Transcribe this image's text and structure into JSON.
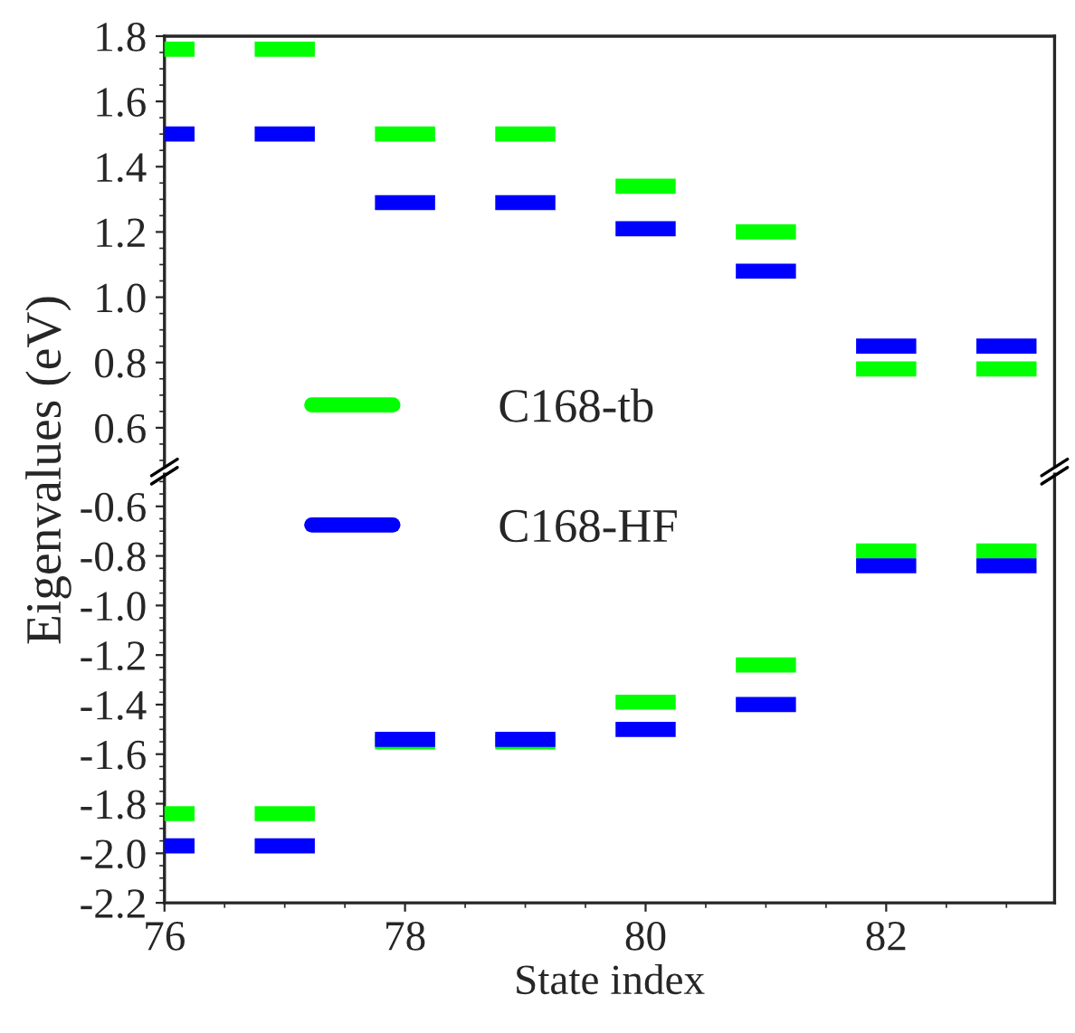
{
  "chart_data": [
    {
      "type": "line",
      "ylabel": "Eigenvalues (eV)",
      "x": [
        76,
        76.25,
        76.5,
        76.75,
        77.25,
        77.5,
        77.75,
        78.25,
        78.5,
        78.75,
        79.25,
        79.5,
        79.75,
        80.25,
        80.5,
        80.75,
        81.25,
        81.5,
        81.75,
        82.25,
        82.5,
        82.75,
        83.25
      ],
      "xlim": [
        76,
        83.4
      ],
      "xticks": [
        76,
        78,
        80,
        82
      ],
      "ylim": [
        0.48,
        1.8
      ],
      "yticks": [
        {
          "value": 0.6,
          "label": "0.6"
        },
        {
          "value": 0.8,
          "label": "0.8"
        },
        {
          "value": 1.0,
          "label": "1.0"
        },
        {
          "value": 1.2,
          "label": "1.2"
        },
        {
          "value": 1.4,
          "label": "1.4"
        },
        {
          "value": 1.6,
          "label": "1.6"
        },
        {
          "value": 1.8,
          "label": "1.8"
        }
      ],
      "tick_labels": "y",
      "legend": "left",
      "line_style": "solid",
      "series": [
        {
          "name": "C168-tb",
          "color": "#00ff00",
          "values": [
            1.76,
            1.76,
            null,
            1.76,
            1.76,
            null,
            1.5,
            1.5,
            null,
            1.5,
            1.5,
            null,
            1.34,
            1.34,
            null,
            1.2,
            1.2,
            null,
            0.78,
            0.78,
            null,
            0.78,
            0.78
          ]
        },
        {
          "name": "C168-HF",
          "color": "#0000ff",
          "values": [
            1.5,
            1.5,
            null,
            1.5,
            1.5,
            null,
            1.29,
            1.29,
            null,
            1.29,
            1.29,
            null,
            1.21,
            1.21,
            null,
            1.08,
            1.08,
            null,
            0.85,
            0.85,
            null,
            0.85,
            0.85
          ]
        }
      ]
    },
    {
      "type": "line",
      "xlabel": "State index",
      "x": [
        76,
        76.25,
        76.5,
        76.75,
        77.25,
        77.5,
        77.75,
        78.25,
        78.5,
        78.75,
        79.25,
        79.5,
        79.75,
        80.25,
        80.5,
        80.75,
        81.25,
        81.5,
        81.75,
        82.25,
        82.5,
        82.75,
        83.25
      ],
      "xlim": [
        76,
        83.4
      ],
      "xticks": [
        76,
        78,
        80,
        82
      ],
      "ylim": [
        -2.2,
        -0.47
      ],
      "yticks": [
        {
          "value": -0.6,
          "label": "-0.6"
        },
        {
          "value": -0.8,
          "label": "-0.8"
        },
        {
          "value": -1.0,
          "label": "-1.0"
        },
        {
          "value": -1.2,
          "label": "-1.2"
        },
        {
          "value": -1.4,
          "label": "-1.4"
        },
        {
          "value": -1.6,
          "label": "-1.6"
        },
        {
          "value": -1.8,
          "label": "-1.8"
        },
        {
          "value": -2.0,
          "label": "-2.0"
        },
        {
          "value": -2.2,
          "label": "-2.2"
        }
      ],
      "line_style": "solid",
      "series": [
        {
          "color": "#00ff00",
          "values": [
            -1.84,
            -1.84,
            null,
            -1.84,
            -1.84,
            null,
            -1.55,
            -1.55,
            null,
            -1.55,
            -1.55,
            null,
            -1.39,
            -1.39,
            null,
            -1.24,
            -1.24,
            null,
            -0.78,
            -0.78,
            null,
            -0.78,
            -0.78
          ]
        },
        {
          "color": "#0000ff",
          "values": [
            -1.97,
            -1.97,
            null,
            -1.97,
            -1.97,
            null,
            -1.54,
            -1.54,
            null,
            -1.54,
            -1.54,
            null,
            -1.5,
            -1.5,
            null,
            -1.4,
            -1.4,
            null,
            -0.84,
            -0.84,
            null,
            -0.84,
            -0.84
          ]
        }
      ]
    }
  ]
}
